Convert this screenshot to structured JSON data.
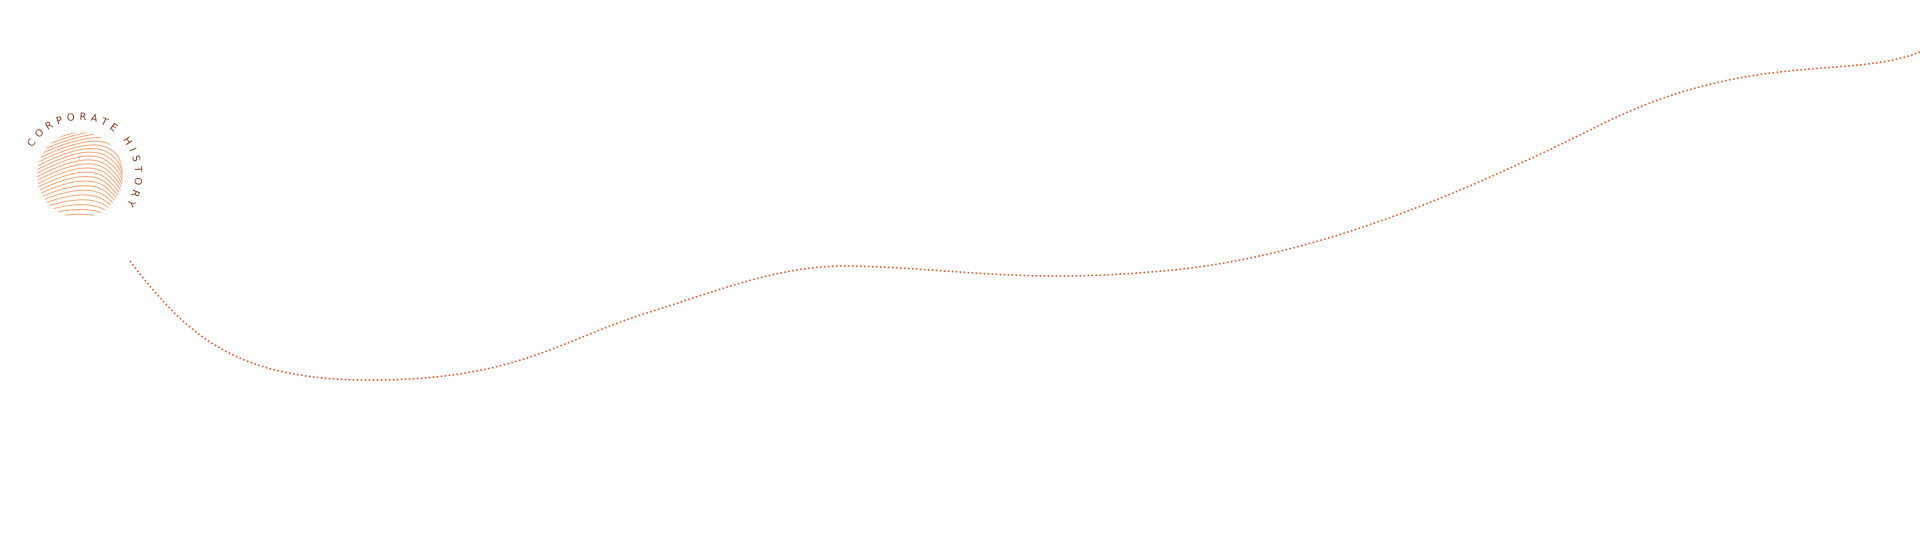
{
  "logo": {
    "text": "CORPORATE HISTORY",
    "text_color": "#8b3a1a",
    "line_color": "#f6a474"
  },
  "timeline": {
    "color": "#e8501e",
    "style": "dotted"
  }
}
